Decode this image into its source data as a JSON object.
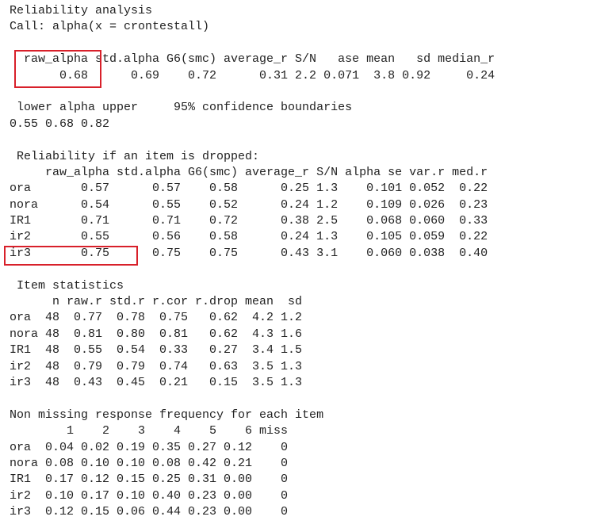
{
  "output": {
    "title": "Reliability analysis",
    "call": "Call: alpha(x = crontestall)",
    "summary": {
      "header": "  raw_alpha std.alpha G6(smc) average_r S/N   ase mean   sd median_r",
      "values": "       0.68      0.69    0.72      0.31 2.2 0.071  3.8 0.92     0.24"
    },
    "confidence": {
      "header": " lower alpha upper     95% confidence boundaries",
      "values": "0.55 0.68 0.82"
    },
    "dropped": {
      "title": " Reliability if an item is dropped:",
      "header": "     raw_alpha std.alpha G6(smc) average_r S/N alpha se var.r med.r",
      "rows": [
        "ora       0.57      0.57    0.58      0.25 1.3    0.101 0.052  0.22",
        "nora      0.54      0.55    0.52      0.24 1.2    0.109 0.026  0.23",
        "IR1       0.71      0.71    0.72      0.38 2.5    0.068 0.060  0.33",
        "ir2       0.55      0.56    0.58      0.24 1.3    0.105 0.059  0.22",
        "ir3       0.75      0.75    0.75      0.43 3.1    0.060 0.038  0.40"
      ]
    },
    "item_stats": {
      "title": " Item statistics",
      "header": "      n raw.r std.r r.cor r.drop mean  sd",
      "rows": [
        "ora  48  0.77  0.78  0.75   0.62  4.2 1.2",
        "nora 48  0.81  0.80  0.81   0.62  4.3 1.6",
        "IR1  48  0.55  0.54  0.33   0.27  3.4 1.5",
        "ir2  48  0.79  0.79  0.74   0.63  3.5 1.3",
        "ir3  48  0.43  0.45  0.21   0.15  3.5 1.3"
      ]
    },
    "frequency": {
      "title": "Non missing response frequency for each item",
      "header": "        1    2    3    4    5    6 miss",
      "rows": [
        "ora  0.04 0.02 0.19 0.35 0.27 0.12    0",
        "nora 0.08 0.10 0.10 0.08 0.42 0.21    0",
        "IR1  0.17 0.12 0.15 0.25 0.31 0.00    0",
        "ir2  0.10 0.17 0.10 0.40 0.23 0.00    0",
        "ir3  0.12 0.15 0.06 0.44 0.23 0.00    0"
      ]
    }
  },
  "highlight_color": "#d8202a"
}
